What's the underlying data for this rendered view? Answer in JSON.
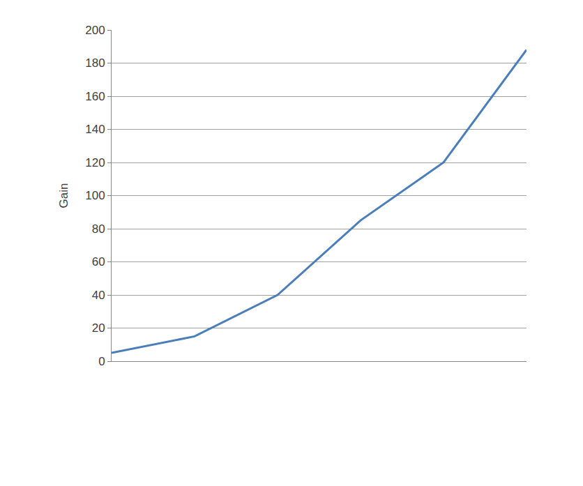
{
  "chart_data": {
    "type": "line",
    "y_label": "Gain",
    "categories": [
      null,
      null,
      null,
      null,
      null,
      null
    ],
    "values": [
      5,
      15,
      40,
      85,
      120,
      188
    ],
    "color": "#4a7ebb",
    "ylim": [
      0,
      200
    ],
    "yticks": [
      0,
      20,
      40,
      60,
      80,
      100,
      120,
      140,
      160,
      180,
      200
    ],
    "grid": true,
    "tick_labels": "y"
  }
}
